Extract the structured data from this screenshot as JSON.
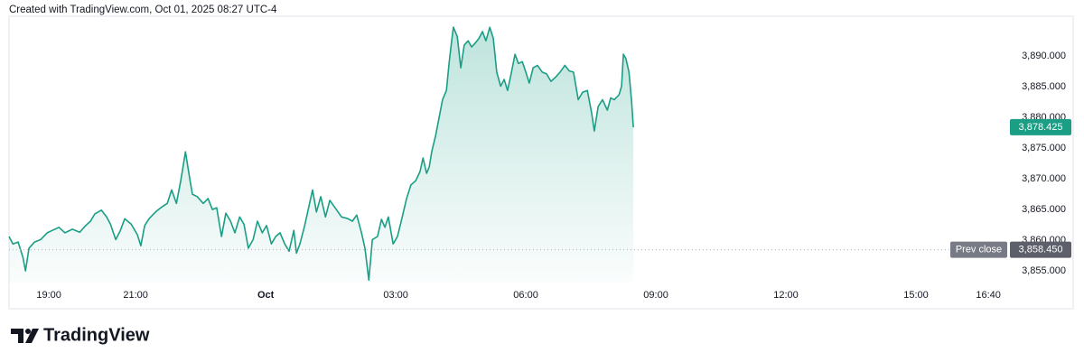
{
  "header": {
    "text": "Created with TradingView.com, Oct 01, 2025 08:27 UTC-4"
  },
  "footer": {
    "brand": "TradingView"
  },
  "chart_data": {
    "type": "area",
    "color": "#1a9e85",
    "x": [
      -5.92,
      -5.83,
      -5.71,
      -5.6,
      -5.54,
      -5.46,
      -5.33,
      -5.19,
      -5.04,
      -4.92,
      -4.77,
      -4.63,
      -4.46,
      -4.29,
      -4.15,
      -4.04,
      -3.94,
      -3.79,
      -3.67,
      -3.58,
      -3.46,
      -3.35,
      -3.25,
      -3.1,
      -2.96,
      -2.88,
      -2.79,
      -2.69,
      -2.54,
      -2.42,
      -2.27,
      -2.17,
      -2.06,
      -1.96,
      -1.85,
      -1.75,
      -1.69,
      -1.58,
      -1.44,
      -1.33,
      -1.23,
      -1.13,
      -1.02,
      -0.92,
      -0.81,
      -0.71,
      -0.6,
      -0.5,
      -0.4,
      -0.29,
      -0.19,
      -0.08,
      0.02,
      0.13,
      0.23,
      0.33,
      0.44,
      0.54,
      0.65,
      0.71,
      0.79,
      0.9,
      1,
      1.08,
      1.17,
      1.27,
      1.38,
      1.48,
      1.63,
      1.75,
      1.9,
      2,
      2.1,
      2.21,
      2.29,
      2.38,
      2.46,
      2.58,
      2.67,
      2.75,
      2.83,
      2.94,
      3.04,
      3.15,
      3.25,
      3.35,
      3.46,
      3.56,
      3.63,
      3.71,
      3.77,
      3.83,
      3.92,
      4,
      4.08,
      4.17,
      4.23,
      4.29,
      4.33,
      4.42,
      4.5,
      4.58,
      4.67,
      4.75,
      4.83,
      4.92,
      5,
      5.08,
      5.17,
      5.25,
      5.33,
      5.42,
      5.5,
      5.58,
      5.67,
      5.75,
      5.83,
      5.92,
      6,
      6.08,
      6.17,
      6.27,
      6.38,
      6.48,
      6.58,
      6.69,
      6.79,
      6.9,
      7,
      7.1,
      7.21,
      7.31,
      7.42,
      7.52,
      7.58,
      7.67,
      7.77,
      7.88,
      7.96,
      8.04,
      8.15,
      8.21,
      8.25,
      8.31,
      8.38,
      8.44,
      8.48
    ],
    "values": [
      3860.6,
      3859.4,
      3859.7,
      3857.2,
      3855.0,
      3858.7,
      3859.7,
      3860.1,
      3861.2,
      3861.6,
      3862.1,
      3861.2,
      3861.8,
      3861.3,
      3862.4,
      3863.1,
      3864.3,
      3864.9,
      3863.8,
      3862.6,
      3860.1,
      3861.6,
      3863.5,
      3862.6,
      3860.9,
      3859.1,
      3862.4,
      3863.5,
      3864.6,
      3865.3,
      3866.0,
      3868.2,
      3866.0,
      3869.7,
      3874.4,
      3870.0,
      3867.5,
      3867.1,
      3866.0,
      3866.8,
      3865.0,
      3865.3,
      3860.6,
      3864.4,
      3863.1,
      3861.2,
      3863.8,
      3862.6,
      3858.7,
      3860.1,
      3863.1,
      3861.2,
      3862.4,
      3859.4,
      3860.6,
      3861.2,
      3859.4,
      3858.2,
      3861.6,
      3857.9,
      3859.4,
      3862.4,
      3865.6,
      3868.2,
      3864.6,
      3867.1,
      3863.8,
      3866.5,
      3865.0,
      3863.8,
      3863.5,
      3863.1,
      3864.1,
      3861.2,
      3858.7,
      3853.5,
      3860.1,
      3860.6,
      3863.4,
      3862.1,
      3863.8,
      3859.4,
      3860.6,
      3863.8,
      3866.8,
      3869.0,
      3869.7,
      3871.2,
      3873.4,
      3870.9,
      3871.9,
      3874.4,
      3877.1,
      3880.0,
      3882.9,
      3884.4,
      3888.8,
      3892.5,
      3894.7,
      3893.2,
      3888.1,
      3891.8,
      3892.5,
      3891.5,
      3892.1,
      3892.9,
      3894.0,
      3892.5,
      3894.7,
      3892.9,
      3887.4,
      3885.1,
      3886.2,
      3884.4,
      3887.4,
      3890.3,
      3888.8,
      3889.1,
      3887.4,
      3885.6,
      3888.1,
      3888.5,
      3887.4,
      3887.1,
      3885.9,
      3886.6,
      3887.4,
      3888.5,
      3887.6,
      3887.4,
      3882.9,
      3884.1,
      3884.4,
      3880.7,
      3877.8,
      3881.8,
      3882.9,
      3881.2,
      3883.2,
      3882.9,
      3883.7,
      3885.1,
      3890.3,
      3889.6,
      3887.4,
      3882.6,
      3878.4
    ],
    "xlim": [
      -5.92,
      17
    ],
    "xticks": [
      {
        "value": -5,
        "label": "19:00"
      },
      {
        "value": -3,
        "label": "21:00"
      },
      {
        "value": 0,
        "label": "Oct"
      },
      {
        "value": 3,
        "label": "03:00"
      },
      {
        "value": 6,
        "label": "06:00"
      },
      {
        "value": 9,
        "label": "09:00"
      },
      {
        "value": 12,
        "label": "12:00"
      },
      {
        "value": 15,
        "label": "15:00"
      },
      {
        "value": 16.67,
        "label": "16:40"
      }
    ],
    "ylim": [
      3853.1,
      3896.5
    ],
    "yticks": [
      {
        "value": 3855,
        "label": "3,855.000"
      },
      {
        "value": 3860,
        "label": "3,860.000"
      },
      {
        "value": 3865,
        "label": "3,865.000"
      },
      {
        "value": 3870,
        "label": "3,870.000"
      },
      {
        "value": 3875,
        "label": "3,875.000"
      },
      {
        "value": 3880,
        "label": "3,880.000"
      },
      {
        "value": 3885,
        "label": "3,885.000"
      },
      {
        "value": 3890,
        "label": "3,890.000"
      }
    ],
    "grid": false,
    "last_price": {
      "value": 3878.425,
      "label": "3,878.425"
    },
    "prev_close": {
      "name": "Prev close",
      "value": 3858.45,
      "label": "3,858.450"
    }
  }
}
